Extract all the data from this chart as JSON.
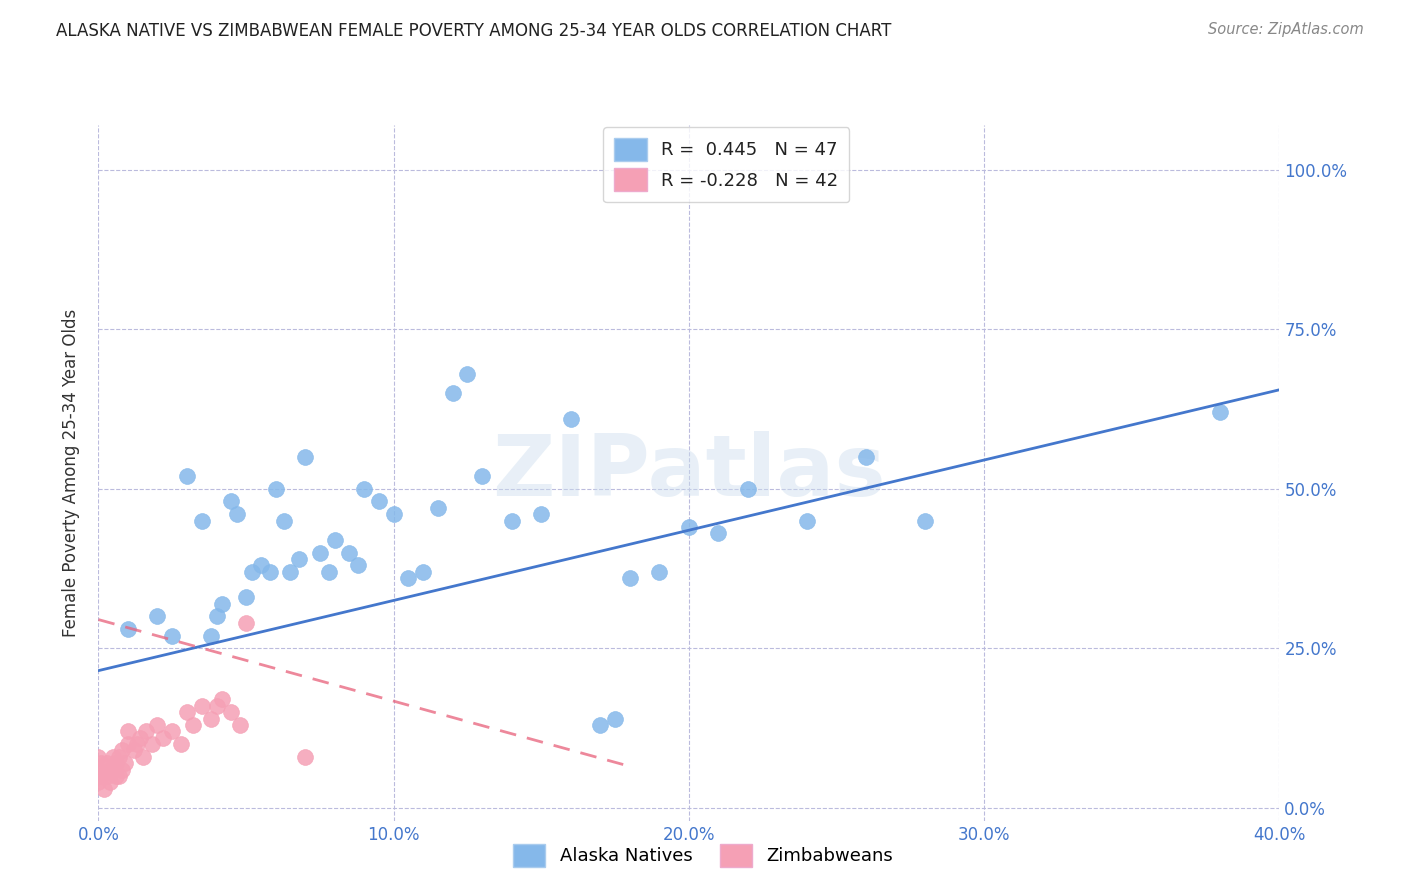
{
  "title": "ALASKA NATIVE VS ZIMBABWEAN FEMALE POVERTY AMONG 25-34 YEAR OLDS CORRELATION CHART",
  "source": "Source: ZipAtlas.com",
  "ylabel": "Female Poverty Among 25-34 Year Olds",
  "xlim": [
    0.0,
    0.4
  ],
  "ylim": [
    -0.02,
    1.07
  ],
  "xtick_values": [
    0.0,
    0.1,
    0.2,
    0.3,
    0.4
  ],
  "ytick_values": [
    0.0,
    0.25,
    0.5,
    0.75,
    1.0
  ],
  "alaska_color": "#85B8EA",
  "zimbabwe_color": "#F5A0B5",
  "alaska_line_color": "#4477CC",
  "zimbabwe_line_color": "#E8607A",
  "alaska_r": 0.445,
  "alaska_n": 47,
  "zimbabwe_r": -0.228,
  "zimbabwe_n": 42,
  "watermark": "ZIPatlas",
  "alaska_x": [
    0.01,
    0.02,
    0.025,
    0.03,
    0.035,
    0.038,
    0.04,
    0.042,
    0.045,
    0.047,
    0.05,
    0.052,
    0.055,
    0.058,
    0.06,
    0.063,
    0.065,
    0.068,
    0.07,
    0.075,
    0.078,
    0.08,
    0.085,
    0.088,
    0.09,
    0.095,
    0.1,
    0.105,
    0.11,
    0.115,
    0.12,
    0.125,
    0.13,
    0.14,
    0.15,
    0.16,
    0.17,
    0.175,
    0.18,
    0.19,
    0.2,
    0.21,
    0.22,
    0.24,
    0.26,
    0.28,
    0.38
  ],
  "alaska_y": [
    0.28,
    0.3,
    0.27,
    0.52,
    0.45,
    0.27,
    0.3,
    0.32,
    0.48,
    0.46,
    0.33,
    0.37,
    0.38,
    0.37,
    0.5,
    0.45,
    0.37,
    0.39,
    0.55,
    0.4,
    0.37,
    0.42,
    0.4,
    0.38,
    0.5,
    0.48,
    0.46,
    0.36,
    0.37,
    0.47,
    0.65,
    0.68,
    0.52,
    0.45,
    0.46,
    0.61,
    0.13,
    0.14,
    0.36,
    0.37,
    0.44,
    0.43,
    0.5,
    0.45,
    0.55,
    0.45,
    0.62
  ],
  "zimbabwe_x": [
    0.0,
    0.0,
    0.0,
    0.0,
    0.001,
    0.001,
    0.002,
    0.003,
    0.003,
    0.004,
    0.004,
    0.005,
    0.005,
    0.006,
    0.006,
    0.007,
    0.007,
    0.008,
    0.008,
    0.009,
    0.01,
    0.01,
    0.012,
    0.013,
    0.014,
    0.015,
    0.016,
    0.018,
    0.02,
    0.022,
    0.025,
    0.028,
    0.03,
    0.032,
    0.035,
    0.038,
    0.04,
    0.042,
    0.045,
    0.048,
    0.05,
    0.07
  ],
  "zimbabwe_y": [
    0.04,
    0.05,
    0.06,
    0.08,
    0.05,
    0.07,
    0.03,
    0.05,
    0.07,
    0.04,
    0.06,
    0.06,
    0.08,
    0.05,
    0.07,
    0.05,
    0.08,
    0.06,
    0.09,
    0.07,
    0.1,
    0.12,
    0.09,
    0.1,
    0.11,
    0.08,
    0.12,
    0.1,
    0.13,
    0.11,
    0.12,
    0.1,
    0.15,
    0.13,
    0.16,
    0.14,
    0.16,
    0.17,
    0.15,
    0.13,
    0.29,
    0.08
  ],
  "alaska_line_x": [
    0.0,
    0.4
  ],
  "alaska_line_y": [
    0.215,
    0.655
  ],
  "zimbabwe_line_x": [
    0.0,
    0.18
  ],
  "zimbabwe_line_y": [
    0.295,
    0.065
  ]
}
